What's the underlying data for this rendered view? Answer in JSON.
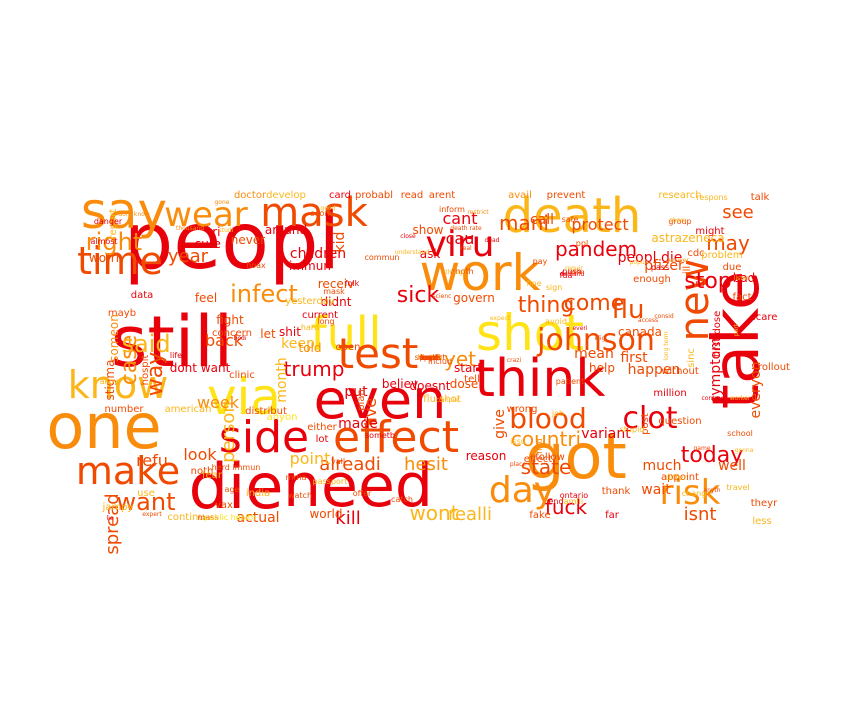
{
  "palette": {
    "red": "#e8000b",
    "orange_red": "#f04a00",
    "orange": "#f98c0a",
    "amber": "#fbb61a",
    "yellow": "#ffe317"
  },
  "words": [
    {
      "text": "peopl",
      "color": "#e8000b"
    },
    {
      "text": "say",
      "color": "#f98c0a"
    },
    {
      "text": "wear",
      "color": "#f98c0a"
    },
    {
      "text": "mask",
      "color": "#f04a00"
    },
    {
      "text": "death",
      "color": "#fbb61a"
    },
    {
      "text": "time",
      "color": "#f04a00"
    },
    {
      "text": "work",
      "color": "#f98c0a"
    },
    {
      "text": "viru",
      "color": "#e8000b"
    },
    {
      "text": "new",
      "color": "#f04a00"
    },
    {
      "text": "take",
      "color": "#e8000b"
    },
    {
      "text": "still",
      "color": "#e8000b"
    },
    {
      "text": "full",
      "color": "#ffe317"
    },
    {
      "text": "shot",
      "color": "#ffe317"
    },
    {
      "text": "know",
      "color": "#fbb61a"
    },
    {
      "text": "test",
      "color": "#f04a00"
    },
    {
      "text": "think",
      "color": "#e8000b"
    },
    {
      "text": "one",
      "color": "#f98c0a"
    },
    {
      "text": "via",
      "color": "#ffe317"
    },
    {
      "text": "even",
      "color": "#e8000b"
    },
    {
      "text": "side",
      "color": "#e8000b"
    },
    {
      "text": "effect",
      "color": "#f04a00"
    },
    {
      "text": "got",
      "color": "#f98c0a"
    },
    {
      "text": "die",
      "color": "#e8000b"
    },
    {
      "text": "need",
      "color": "#e8000b"
    },
    {
      "text": "make",
      "color": "#f04a00"
    },
    {
      "text": "day",
      "color": "#f98c0a"
    },
    {
      "text": "risk",
      "color": "#f98c0a"
    },
    {
      "text": "johnson",
      "color": "#f04a00"
    },
    {
      "text": "blood",
      "color": "#f04a00"
    },
    {
      "text": "clot",
      "color": "#e8000b"
    },
    {
      "text": "flu",
      "color": "#f04a00"
    },
    {
      "text": "right",
      "color": "#f98c0a"
    },
    {
      "text": "case",
      "color": "#f98c0a"
    },
    {
      "text": "said",
      "color": "#fbb61a"
    },
    {
      "text": "want",
      "color": "#f04a00"
    },
    {
      "text": "infect",
      "color": "#f98c0a"
    },
    {
      "text": "way",
      "color": "#f04a00"
    },
    {
      "text": "sick",
      "color": "#e8000b"
    },
    {
      "text": "pandem",
      "color": "#e8000b"
    },
    {
      "text": "stop",
      "color": "#e8000b"
    },
    {
      "text": "today",
      "color": "#e8000b"
    },
    {
      "text": "come",
      "color": "#f04a00"
    },
    {
      "text": "thing",
      "color": "#f04a00"
    },
    {
      "text": "may",
      "color": "#f04a00"
    },
    {
      "text": "mani",
      "color": "#f04a00"
    },
    {
      "text": "year",
      "color": "#f04a00"
    },
    {
      "text": "see",
      "color": "#f04a00"
    },
    {
      "text": "trump",
      "color": "#e8000b"
    },
    {
      "text": "yet",
      "color": "#f98c0a"
    },
    {
      "text": "countri",
      "color": "#f98c0a"
    },
    {
      "text": "state",
      "color": "#f04a00"
    },
    {
      "text": "fuck",
      "color": "#e8000b"
    },
    {
      "text": "wont",
      "color": "#fbb61a"
    },
    {
      "text": "realli",
      "color": "#fbb61a"
    },
    {
      "text": "isnt",
      "color": "#f04a00"
    },
    {
      "text": "kill",
      "color": "#e8000b"
    },
    {
      "text": "alreadi",
      "color": "#f04a00"
    },
    {
      "text": "hesit",
      "color": "#f98c0a"
    },
    {
      "text": "protect",
      "color": "#f04a00"
    },
    {
      "text": "person",
      "color": "#fbb61a"
    },
    {
      "text": "week",
      "color": "#f98c0a"
    },
    {
      "text": "point",
      "color": "#fbb61a"
    },
    {
      "text": "look",
      "color": "#f04a00"
    },
    {
      "text": "refu",
      "color": "#f04a00"
    },
    {
      "text": "spread",
      "color": "#f04a00"
    },
    {
      "text": "actual",
      "color": "#f04a00"
    },
    {
      "text": "live",
      "color": "#f04a00"
    },
    {
      "text": "cant",
      "color": "#e8000b"
    },
    {
      "text": "cau",
      "color": "#e8000b"
    },
    {
      "text": "call",
      "color": "#f04a00"
    },
    {
      "text": "peopl die",
      "color": "#e8000b"
    },
    {
      "text": "pfizer",
      "color": "#f04a00"
    },
    {
      "text": "symptom",
      "color": "#e8000b"
    },
    {
      "text": "everyon",
      "color": "#f04a00"
    },
    {
      "text": "variant",
      "color": "#e8000b"
    },
    {
      "text": "first",
      "color": "#f04a00"
    },
    {
      "text": "mean",
      "color": "#f04a00"
    },
    {
      "text": "happen",
      "color": "#f04a00"
    },
    {
      "text": "well",
      "color": "#f04a00"
    },
    {
      "text": "wait",
      "color": "#f04a00"
    },
    {
      "text": "much",
      "color": "#f04a00"
    },
    {
      "text": "canada",
      "color": "#f04a00"
    },
    {
      "text": "help",
      "color": "#f04a00"
    },
    {
      "text": "put",
      "color": "#e8000b"
    },
    {
      "text": "made",
      "color": "#e8000b"
    },
    {
      "text": "give",
      "color": "#f04a00"
    },
    {
      "text": "dont want",
      "color": "#e8000b"
    },
    {
      "text": "back",
      "color": "#f04a00"
    },
    {
      "text": "let",
      "color": "#f04a00"
    },
    {
      "text": "keep",
      "color": "#fbb61a"
    },
    {
      "text": "feel",
      "color": "#f04a00"
    },
    {
      "text": "fight",
      "color": "#f04a00"
    },
    {
      "text": "world",
      "color": "#f04a00"
    },
    {
      "text": "doctor",
      "color": "#f98c0a"
    },
    {
      "text": "develop",
      "color": "#fbb61a"
    },
    {
      "text": "card",
      "color": "#e8000b"
    },
    {
      "text": "probabl",
      "color": "#f04a00"
    },
    {
      "text": "read",
      "color": "#f04a00"
    },
    {
      "text": "arent",
      "color": "#f04a00"
    },
    {
      "text": "avail",
      "color": "#f98c0a"
    },
    {
      "text": "prevent",
      "color": "#f04a00"
    },
    {
      "text": "research",
      "color": "#fbb61a"
    },
    {
      "text": "talk",
      "color": "#f04a00"
    },
    {
      "text": "report",
      "color": "#fbb61a"
    },
    {
      "text": "children",
      "color": "#e8000b"
    },
    {
      "text": "never",
      "color": "#f04a00"
    },
    {
      "text": "around",
      "color": "#e8000b"
    },
    {
      "text": "show",
      "color": "#f04a00"
    },
    {
      "text": "ask",
      "color": "#e8000b"
    },
    {
      "text": "kid",
      "color": "#f04a00"
    },
    {
      "text": "immun",
      "color": "#e8000b"
    },
    {
      "text": "worri",
      "color": "#f04a00"
    },
    {
      "text": "sure",
      "color": "#e8000b"
    },
    {
      "text": "tri",
      "color": "#e8000b"
    },
    {
      "text": "mayb",
      "color": "#f04a00"
    },
    {
      "text": "someon",
      "color": "#f98c0a"
    },
    {
      "text": "stigma",
      "color": "#f04a00"
    },
    {
      "text": "govern",
      "color": "#f04a00"
    },
    {
      "text": "receiv",
      "color": "#f04a00"
    },
    {
      "text": "didnt",
      "color": "#e8000b"
    },
    {
      "text": "shit",
      "color": "#e8000b"
    },
    {
      "text": "told",
      "color": "#f98c0a"
    },
    {
      "text": "month",
      "color": "#fbb61a"
    },
    {
      "text": "believ",
      "color": "#e8000b"
    },
    {
      "text": "doesnt",
      "color": "#e8000b"
    },
    {
      "text": "dose",
      "color": "#f04a00"
    },
    {
      "text": "start",
      "color": "#e8000b"
    },
    {
      "text": "reason",
      "color": "#e8000b"
    },
    {
      "text": "follow",
      "color": "#f04a00"
    },
    {
      "text": "plan",
      "color": "#f04a00"
    },
    {
      "text": "wrong",
      "color": "#f04a00"
    },
    {
      "text": "enough",
      "color": "#f04a00"
    },
    {
      "text": "due",
      "color": "#f04a00"
    },
    {
      "text": "fact",
      "color": "#f04a00"
    },
    {
      "text": "bad",
      "color": "#e8000b"
    },
    {
      "text": "scare",
      "color": "#e8000b"
    },
    {
      "text": "rollout",
      "color": "#f04a00"
    },
    {
      "text": "sinc",
      "color": "#fbb61a"
    },
    {
      "text": "without",
      "color": "#f04a00"
    },
    {
      "text": "astrazeneca",
      "color": "#fbb61a"
    },
    {
      "text": "cdc",
      "color": "#f04a00"
    },
    {
      "text": "problem",
      "color": "#fbb61a"
    },
    {
      "text": "ill",
      "color": "#f04a00"
    },
    {
      "text": "thank",
      "color": "#f04a00"
    },
    {
      "text": "less",
      "color": "#fbb61a"
    },
    {
      "text": "theyr",
      "color": "#f04a00"
    },
    {
      "text": "jampy",
      "color": "#fbb61a"
    },
    {
      "text": "use",
      "color": "#fbb61a"
    },
    {
      "text": "india",
      "color": "#fbb61a"
    },
    {
      "text": "vax",
      "color": "#f04a00"
    },
    {
      "text": "continu",
      "color": "#fbb61a"
    },
    {
      "text": "clinic",
      "color": "#f04a00"
    },
    {
      "text": "number",
      "color": "#f04a00"
    },
    {
      "text": "american",
      "color": "#fbb61a"
    },
    {
      "text": "data",
      "color": "#e8000b"
    },
    {
      "text": "hospit",
      "color": "#f04a00"
    },
    {
      "text": "concern",
      "color": "#f04a00"
    },
    {
      "text": "distribut",
      "color": "#f04a00"
    },
    {
      "text": "anyon",
      "color": "#ffe317"
    },
    {
      "text": "either",
      "color": "#f04a00"
    },
    {
      "text": "lot",
      "color": "#e8000b"
    },
    {
      "text": "noth",
      "color": "#f04a00"
    },
    {
      "text": "appoint",
      "color": "#f04a00"
    },
    {
      "text": "million",
      "color": "#e8000b"
    },
    {
      "text": "first dose",
      "color": "#e8000b"
    },
    {
      "text": "question",
      "color": "#f04a00"
    },
    {
      "text": "post",
      "color": "#f04a00"
    },
    {
      "text": "might",
      "color": "#e8000b"
    },
    {
      "text": "ppl",
      "color": "#f04a00"
    },
    {
      "text": "safe",
      "color": "#f04a00"
    },
    {
      "text": "find",
      "color": "#f98c0a"
    },
    {
      "text": "effect",
      "color": "#f04a00"
    },
    {
      "text": "fear",
      "color": "#fbb61a"
    },
    {
      "text": "yesterday",
      "color": "#fbb61a"
    },
    {
      "text": "current",
      "color": "#e8000b"
    },
    {
      "text": "open",
      "color": "#f04a00"
    },
    {
      "text": "anoth",
      "color": "#f04a00"
    },
    {
      "text": "inform",
      "color": "#f04a00"
    },
    {
      "text": "long",
      "color": "#f04a00"
    },
    {
      "text": "includ",
      "color": "#f04a00"
    },
    {
      "text": "tell",
      "color": "#f04a00"
    },
    {
      "text": "flu shot",
      "color": "#fbb61a"
    },
    {
      "text": "patient",
      "color": "#f04a00"
    },
    {
      "text": "danger",
      "color": "#e8000b"
    },
    {
      "text": "lie",
      "color": "#e8000b"
    },
    {
      "text": "mass",
      "color": "#f04a00"
    },
    {
      "text": "public health",
      "color": "#ffe317"
    },
    {
      "text": "offer",
      "color": "#f04a00"
    },
    {
      "text": "catch",
      "color": "#f04a00"
    },
    {
      "text": "fake",
      "color": "#f04a00"
    },
    {
      "text": "far",
      "color": "#e8000b"
    },
    {
      "text": "life",
      "color": "#e8000b"
    },
    {
      "text": "herd immun",
      "color": "#f04a00"
    },
    {
      "text": "close",
      "color": "#e8000b"
    },
    {
      "text": "death rate",
      "color": "#f04a00"
    },
    {
      "text": "anyth",
      "color": "#f04a00"
    },
    {
      "text": "school",
      "color": "#f04a00"
    },
    {
      "text": "pass",
      "color": "#e8000b"
    },
    {
      "text": "almost",
      "color": "#e8000b"
    },
    {
      "text": "folk",
      "color": "#e8000b"
    },
    {
      "text": "ontario",
      "color": "#e8000b"
    },
    {
      "text": "stupid",
      "color": "#fbb61a"
    },
    {
      "text": "group",
      "color": "#f04a00"
    },
    {
      "text": "respons",
      "color": "#fbb61a"
    },
    {
      "text": "allow",
      "color": "#fbb61a"
    },
    {
      "text": "sometb",
      "color": "#e8000b"
    },
    {
      "text": "hard",
      "color": "#fbb61a"
    },
    {
      "text": "pay",
      "color": "#f04a00"
    },
    {
      "text": "sign",
      "color": "#fbb61a"
    },
    {
      "text": "fine",
      "color": "#fbb61a"
    },
    {
      "text": "age",
      "color": "#f04a00"
    },
    {
      "text": "mrna",
      "color": "#f04a00"
    },
    {
      "text": "watch",
      "color": "#f04a00"
    },
    {
      "text": "yall",
      "color": "#f04a00"
    },
    {
      "text": "passport",
      "color": "#fbb61a"
    },
    {
      "text": "issu",
      "color": "#fbb61a"
    },
    {
      "text": "famili",
      "color": "#fbb61a"
    },
    {
      "text": "travel",
      "color": "#fbb61a"
    },
    {
      "text": "hoax",
      "color": "#f04a00"
    },
    {
      "text": "soon",
      "color": "#f04a00"
    },
    {
      "text": "chang",
      "color": "#fbb61a"
    },
    {
      "text": "mask",
      "color": "#f04a00"
    },
    {
      "text": "job",
      "color": "#fbb61a"
    },
    {
      "text": "avoid",
      "color": "#fbb61a"
    },
    {
      "text": "fda",
      "color": "#e8000b"
    },
    {
      "text": "differ",
      "color": "#fbb61a"
    },
    {
      "text": "end",
      "color": "#e8000b"
    },
    {
      "text": "push",
      "color": "#e8000b"
    },
    {
      "text": "though",
      "color": "#fbb61a"
    },
    {
      "text": "elig",
      "color": "#f04a00"
    },
    {
      "text": "real",
      "color": "#f04a00"
    },
    {
      "text": "dead",
      "color": "#e8000b"
    },
    {
      "text": "restrict",
      "color": "#f98c0a"
    },
    {
      "text": "demand",
      "color": "#e8000b"
    },
    {
      "text": "place",
      "color": "#f04a00"
    },
    {
      "text": "commun",
      "color": "#f04a00"
    },
    {
      "text": "good",
      "color": "#fbb61a"
    },
    {
      "text": "expert",
      "color": "#f04a00"
    },
    {
      "text": "access",
      "color": "#f04a00"
    },
    {
      "text": "fail",
      "color": "#e8000b"
    },
    {
      "text": "mean",
      "color": "#f04a00"
    },
    {
      "text": "scienc",
      "color": "#f04a00"
    },
    {
      "text": "understand",
      "color": "#fbb61a"
    },
    {
      "text": "dont know",
      "color": "#f98c0a"
    },
    {
      "text": "miss",
      "color": "#f04a00"
    },
    {
      "text": "complet",
      "color": "#fbb61a"
    },
    {
      "text": "expect",
      "color": "#fbb61a"
    },
    {
      "text": "share",
      "color": "#fbb61a"
    },
    {
      "text": "bodi",
      "color": "#e8000b"
    },
    {
      "text": "crazi",
      "color": "#f04a00"
    },
    {
      "text": "everi",
      "color": "#e8000b"
    },
    {
      "text": "consid",
      "color": "#f04a00"
    },
    {
      "text": "long term",
      "color": "#fbb61a"
    },
    {
      "text": "part",
      "color": "#fbb61a"
    },
    {
      "text": "game",
      "color": "#f04a00"
    },
    {
      "text": "gonna",
      "color": "#fbb61a"
    },
    {
      "text": "contract",
      "color": "#e8000b"
    },
    {
      "text": "popul",
      "color": "#fbb61a"
    },
    {
      "text": "studi",
      "color": "#fbb61a"
    },
    {
      "text": "gone",
      "color": "#f98c0a"
    },
    {
      "text": "thousand",
      "color": "#f98c0a"
    },
    {
      "text": "answer",
      "color": "#f98c0a"
    },
    {
      "text": "requir",
      "color": "#fbb61a"
    },
    {
      "text": "worker",
      "color": "#fbb61a"
    },
    {
      "text": "listen",
      "color": "#fbb61a"
    },
    {
      "text": "lead",
      "color": "#fbb61a"
    },
    {
      "text": "health",
      "color": "#fbb61a"
    },
    {
      "text": "late",
      "color": "#fbb61a"
    },
    {
      "text": "care",
      "color": "#e8000b"
    },
    {
      "text": "pretti",
      "color": "#f04a00"
    },
    {
      "text": "hope",
      "color": "#f04a00"
    },
    {
      "text": "support",
      "color": "#f04a00"
    },
    {
      "text": "cost",
      "color": "#f04a00"
    },
    {
      "text": "least",
      "color": "#f04a00"
    }
  ]
}
